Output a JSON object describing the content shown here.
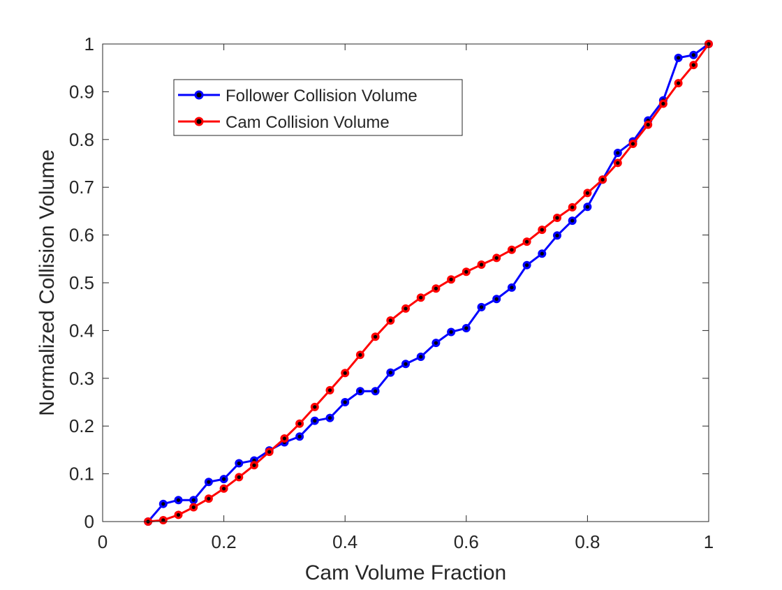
{
  "chart_data": {
    "type": "line",
    "title": "",
    "xlabel": "Cam Volume Fraction",
    "ylabel": "Normalized Collision Volume",
    "xlim": [
      0,
      1
    ],
    "ylim": [
      0,
      1
    ],
    "grid": false,
    "legend_position": "top-left",
    "xticks": [
      0,
      0.2,
      0.4,
      0.6,
      0.8,
      1
    ],
    "xtick_labels": [
      "0",
      "0.2",
      "0.4",
      "0.6",
      "0.8",
      "1"
    ],
    "yticks": [
      0,
      0.1,
      0.2,
      0.3,
      0.4,
      0.5,
      0.6,
      0.7,
      0.8,
      0.9,
      1
    ],
    "ytick_labels": [
      "0",
      "0.1",
      "0.2",
      "0.3",
      "0.4",
      "0.5",
      "0.6",
      "0.7",
      "0.8",
      "0.9",
      "1"
    ],
    "x": [
      0.075,
      0.1,
      0.125,
      0.15,
      0.175,
      0.2,
      0.225,
      0.25,
      0.275,
      0.3,
      0.325,
      0.35,
      0.375,
      0.4,
      0.425,
      0.45,
      0.475,
      0.5,
      0.525,
      0.55,
      0.575,
      0.6,
      0.625,
      0.65,
      0.675,
      0.7,
      0.725,
      0.75,
      0.775,
      0.8,
      0.825,
      0.85,
      0.875,
      0.9,
      0.925,
      0.95,
      0.975,
      1.0
    ],
    "series": [
      {
        "name": "Follower Collision Volume",
        "color": "#0000ff",
        "marker_color": "#000000",
        "values": [
          0.0,
          0.037,
          0.045,
          0.045,
          0.083,
          0.089,
          0.122,
          0.128,
          0.149,
          0.166,
          0.178,
          0.211,
          0.217,
          0.25,
          0.273,
          0.273,
          0.312,
          0.33,
          0.345,
          0.374,
          0.397,
          0.405,
          0.449,
          0.466,
          0.49,
          0.537,
          0.561,
          0.599,
          0.63,
          0.659,
          0.716,
          0.772,
          0.796,
          0.84,
          0.882,
          0.971,
          0.977,
          1.0
        ]
      },
      {
        "name": "Cam Collision Volume",
        "color": "#ff0000",
        "marker_color": "#000000",
        "values": [
          0.0,
          0.003,
          0.014,
          0.03,
          0.048,
          0.069,
          0.093,
          0.118,
          0.146,
          0.174,
          0.205,
          0.24,
          0.275,
          0.311,
          0.349,
          0.387,
          0.421,
          0.446,
          0.469,
          0.488,
          0.507,
          0.523,
          0.538,
          0.552,
          0.569,
          0.586,
          0.611,
          0.636,
          0.658,
          0.688,
          0.716,
          0.751,
          0.791,
          0.831,
          0.875,
          0.918,
          0.956,
          1.0
        ]
      }
    ]
  }
}
